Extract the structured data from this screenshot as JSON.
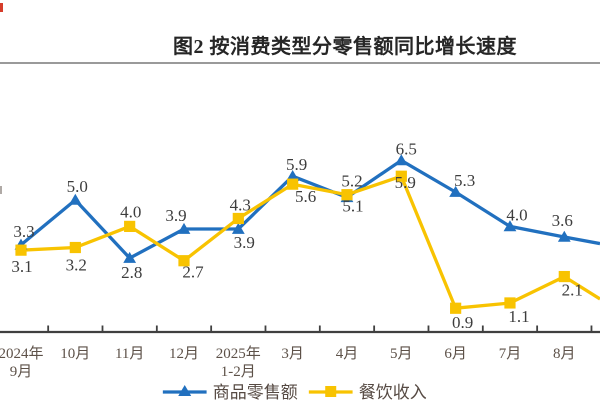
{
  "header": {
    "title": "图2 按消费类型分零售额同比增长速度"
  },
  "chart_data": {
    "type": "line",
    "title": "图2 按消费类型分零售额同比增长速度",
    "categories": [
      "2024年9月",
      "10月",
      "11月",
      "12月",
      "2025年1-2月",
      "3月",
      "4月",
      "5月",
      "6月",
      "7月",
      "8月"
    ],
    "category_display": [
      [
        "2024年",
        "9月"
      ],
      [
        "10月",
        ""
      ],
      [
        "11月",
        ""
      ],
      [
        "12月",
        ""
      ],
      [
        "2025年",
        "1-2月"
      ],
      [
        "3月",
        ""
      ],
      [
        "4月",
        ""
      ],
      [
        "5月",
        ""
      ],
      [
        "6月",
        ""
      ],
      [
        "7月",
        ""
      ],
      [
        "8月",
        ""
      ]
    ],
    "series": [
      {
        "name": "商品零售额",
        "color": "#2170bf",
        "marker": "triangle",
        "values": [
          3.3,
          5.0,
          2.8,
          3.9,
          3.9,
          5.9,
          5.1,
          6.5,
          5.3,
          4.0,
          3.6
        ],
        "edge_value": 3.35
      },
      {
        "name": "餐饮收入",
        "color": "#f8c301",
        "marker": "square",
        "values": [
          3.1,
          3.2,
          4.0,
          2.7,
          4.3,
          5.6,
          5.2,
          5.9,
          0.9,
          1.1,
          2.1
        ],
        "edge_value": 1.25
      }
    ],
    "value_labels_shown": true,
    "xlabel": "",
    "ylabel": "",
    "y_axis_visible": false,
    "grid": false,
    "legend_position": "bottom",
    "note": "left and right edges of plot are cropped; lines continue past 8月 to image edge",
    "colors": {
      "value_label_text": "#3d3d3d",
      "axis_line": "#404040",
      "axis_tick_text": "#5d5148",
      "divider_line": "#9a9a9a"
    }
  },
  "legend": {
    "items": [
      {
        "label": "商品零售额"
      },
      {
        "label": "餐饮收入"
      }
    ]
  }
}
